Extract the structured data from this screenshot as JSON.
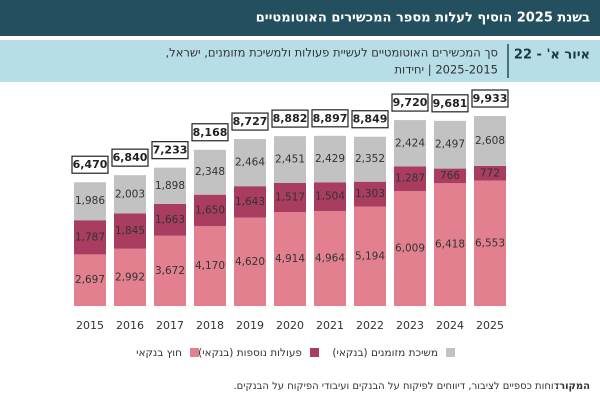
{
  "chart_data": {
    "type": "stacked_bar",
    "title": "בשנת 2025 הוסיף לעלות מספר המכשירים האוטומטיים",
    "figure_label": "איור א' - 22",
    "subtitle": [
      "סך המכשירים האוטומטיים לעשיית פעולות ולמשיכת מזומנים, ישראל,",
      "2025-2015 | יחידות"
    ],
    "categories": [
      "2015",
      "2016",
      "2017",
      "2018",
      "2019",
      "2020",
      "2021",
      "2022",
      "2023",
      "2024",
      "2025"
    ],
    "series": [
      {
        "name": "חוץ בנקאי",
        "color": "#e3808f",
        "values": [
          2697,
          2992,
          3672,
          4170,
          4620,
          4914,
          4964,
          5194,
          6009,
          6418,
          6553
        ],
        "value_labels": [
          "2,697",
          "2,992",
          "3,672",
          "4,170",
          "4,620",
          "4,914",
          "4,964",
          "5,194",
          "6,009",
          "6,418",
          "6,553"
        ]
      },
      {
        "name": "פעולות נוספות (בנקאי)",
        "color": "#a83d5f",
        "values": [
          1787,
          1845,
          1663,
          1650,
          1643,
          1517,
          1504,
          1303,
          1287,
          766,
          772
        ],
        "value_labels": [
          "1,787",
          "1,845",
          "1,663",
          "1,650",
          "1,643",
          "1,517",
          "1,504",
          "1,303",
          "1,287",
          "766",
          "772"
        ]
      },
      {
        "name": "משיכת מזומנים (בנקאי)",
        "color": "#c2c2c2",
        "values": [
          1986,
          2003,
          1898,
          2348,
          2464,
          2451,
          2429,
          2352,
          2424,
          2497,
          2608
        ],
        "value_labels": [
          "1,986",
          "2,003",
          "1,898",
          "2,348",
          "2,464",
          "2,451",
          "2,429",
          "2,352",
          "2,424",
          "2,497",
          "2,608"
        ]
      }
    ],
    "totals": {
      "values": [
        6470,
        6840,
        7233,
        8168,
        8727,
        8882,
        8897,
        8849,
        9720,
        9681,
        9933
      ],
      "value_labels": [
        "6,470",
        "6,840",
        "7,233",
        "8,168",
        "8,727",
        "8,882",
        "8,897",
        "8,849",
        "9,720",
        "9,681",
        "9,933"
      ]
    },
    "source_label": "המקור:",
    "source": "דוחות כספיים לציבור, דיווחים לפיקוח על הבנקים ועיבודי הפיקוח על הבנקים."
  }
}
